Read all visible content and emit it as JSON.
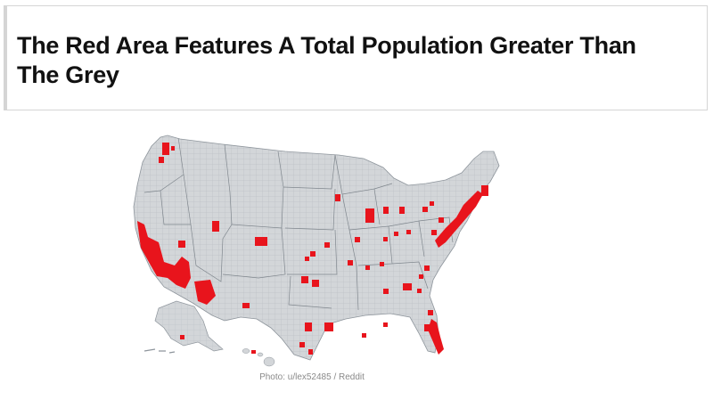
{
  "title": "The Red Area Features A Total Population Greater Than The Grey",
  "caption": "Photo: u/lex52485 / Reddit",
  "colors": {
    "red_area": "#e8141c",
    "grey_area": "#d3d6d9",
    "county_lines": "#9aa0a6",
    "caption_text": "#8a8a8a"
  }
}
